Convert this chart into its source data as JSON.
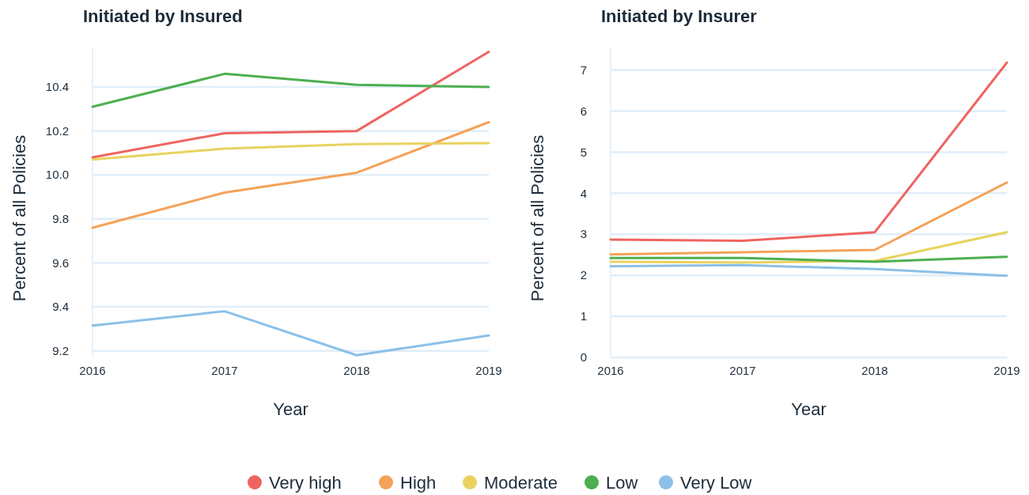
{
  "chart_data": [
    {
      "type": "line",
      "title": "Initiated by Insured",
      "xlabel": "Year",
      "ylabel": "Percent of all Policies",
      "x": [
        2016,
        2017,
        2018,
        2019
      ],
      "xlim": [
        2016,
        2019
      ],
      "xticks": [
        2016,
        2017,
        2018,
        2019
      ],
      "ylim": [
        9.17,
        10.58
      ],
      "yticks": [
        9.2,
        9.4,
        9.6,
        9.8,
        {
          "value": 10,
          "label": "10.0"
        },
        10.2,
        10.4
      ],
      "grid": "y",
      "legend": "bottom",
      "series": [
        {
          "name": "Very high",
          "color": "#ef6461",
          "values": [
            10.08,
            10.19,
            10.2,
            10.56
          ]
        },
        {
          "name": "High",
          "color": "#f4a259",
          "values": [
            9.76,
            9.92,
            10.01,
            10.24
          ]
        },
        {
          "name": "Moderate",
          "color": "#e8d35f",
          "values": [
            10.07,
            10.12,
            10.14,
            10.145
          ]
        },
        {
          "name": "Low",
          "color": "#4caf50",
          "values": [
            10.31,
            10.46,
            10.41,
            10.4
          ]
        },
        {
          "name": "Very Low",
          "color": "#8cc0e8",
          "values": [
            9.315,
            9.38,
            9.18,
            9.27
          ]
        }
      ]
    },
    {
      "type": "line",
      "title": "Initiated by Insurer",
      "xlabel": "Year",
      "ylabel": "Percent of all Policies",
      "x": [
        2016,
        2017,
        2018,
        2019
      ],
      "xlim": [
        2016,
        2019
      ],
      "xticks": [
        2016,
        2017,
        2018,
        2019
      ],
      "ylim": [
        0,
        7.55
      ],
      "yticks": [
        0,
        1,
        2,
        3,
        4,
        5,
        6,
        7
      ],
      "grid": "y",
      "series": [
        {
          "color": "#ef6461",
          "values": [
            2.87,
            2.84,
            3.05,
            7.18
          ]
        },
        {
          "color": "#f4a259",
          "values": [
            2.51,
            2.56,
            2.62,
            4.26
          ]
        },
        {
          "color": "#e8d35f",
          "values": [
            2.33,
            2.31,
            2.35,
            3.05
          ]
        },
        {
          "color": "#4caf50",
          "values": [
            2.42,
            2.42,
            2.33,
            2.45
          ]
        },
        {
          "color": "#8cc0e8",
          "values": [
            2.22,
            2.25,
            2.15,
            1.99
          ]
        }
      ]
    }
  ]
}
